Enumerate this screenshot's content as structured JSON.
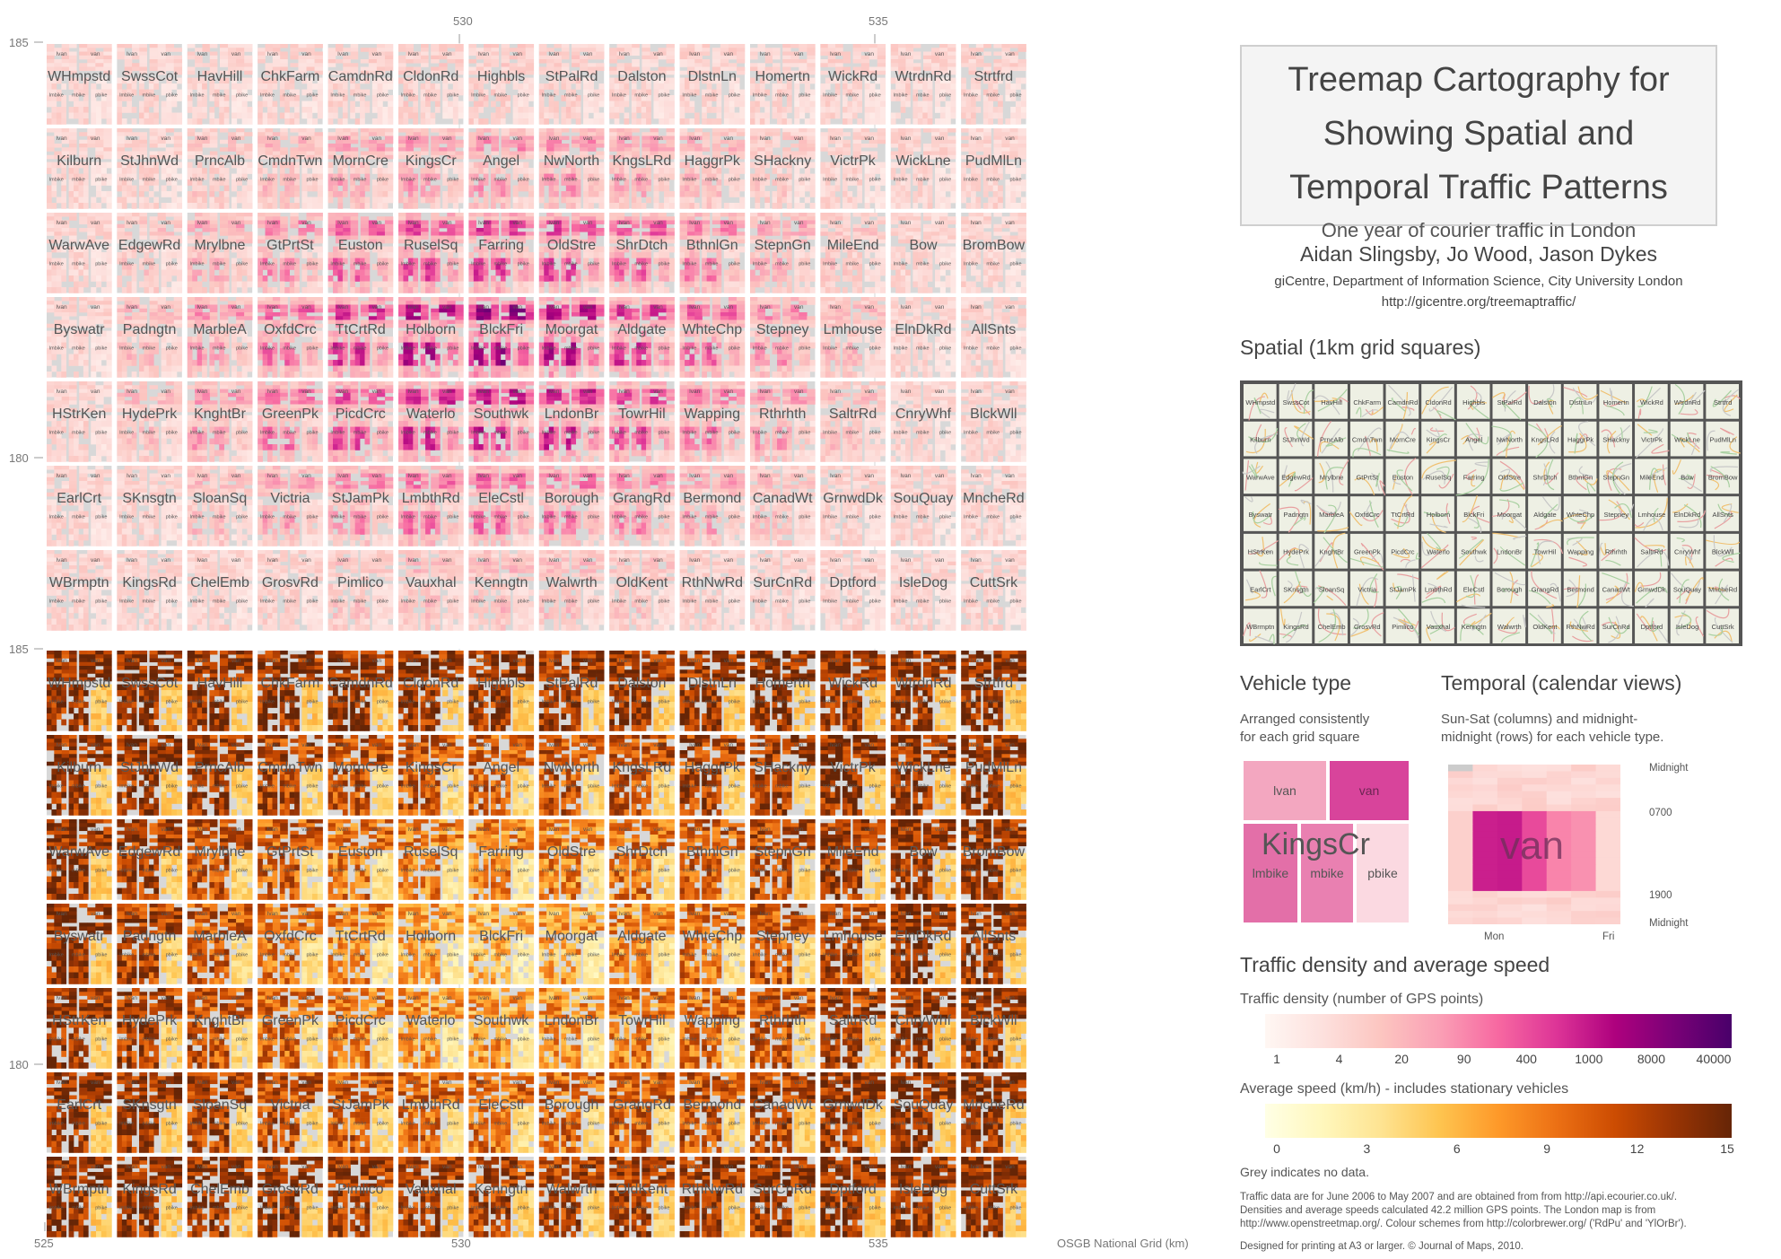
{
  "axes": {
    "top_ticks": [
      "530",
      "535"
    ],
    "bottom_ticks": [
      "525",
      "530",
      "535"
    ],
    "left_ticks_upper": [
      "185",
      "180"
    ],
    "left_ticks_lower": [
      "185",
      "180"
    ],
    "axis_caption": "OSGB National Grid (km)"
  },
  "grid": {
    "columns": 14,
    "rows": [
      [
        "WHmpstd",
        "SwssCot",
        "HavHill",
        "ChkFarm",
        "CamdnRd",
        "CldonRd",
        "Highbls",
        "StPalRd",
        "Dalston",
        "DlstnLn",
        "Homertn",
        "WickRd",
        "WtrdnRd",
        "Strtfrd"
      ],
      [
        "Kilburn",
        "StJhnWd",
        "PrncAlb",
        "CmdnTwn",
        "MornCre",
        "KingsCr",
        "Angel",
        "NwNorth",
        "KngsLRd",
        "HaggrPk",
        "SHackny",
        "VictrPk",
        "WickLne",
        "PudMlLn"
      ],
      [
        "WarwAve",
        "EdgewRd",
        "Mrylbne",
        "GtPrtSt",
        "Euston",
        "RuselSq",
        "Farring",
        "OldStre",
        "ShrDtch",
        "BthnlGn",
        "StepnGn",
        "MileEnd",
        "Bow",
        "BromBow"
      ],
      [
        "Byswatr",
        "Padngtn",
        "MarbleA",
        "OxfdCrc",
        "TtCrtRd",
        "Holborn",
        "BlckFri",
        "Moorgat",
        "Aldgate",
        "WhteChp",
        "Stepney",
        "Lmhouse",
        "ElnDkRd",
        "AllSnts"
      ],
      [
        "HStrKen",
        "HydePrk",
        "KnghtBr",
        "GreenPk",
        "PicdCrc",
        "Waterlo",
        "Southwk",
        "LndonBr",
        "TowrHil",
        "Wapping",
        "Rthrhth",
        "SaltrRd",
        "CnryWhf",
        "BlckWll"
      ],
      [
        "EarlCrt",
        "SKnsgtn",
        "SloanSq",
        "Victria",
        "StJamPk",
        "LmbthRd",
        "EleCstl",
        "Borough",
        "GrangRd",
        "Bermond",
        "CanadWt",
        "GrnwdDk",
        "SouQuay",
        "MncheRd"
      ],
      [
        "WBrmptn",
        "KingsRd",
        "ChelEmb",
        "GrosvRd",
        "Pimlico",
        "Vauxhal",
        "Kenngtn",
        "Walwrth",
        "OldKent",
        "RthNwRd",
        "SurCnRd",
        "Dptford",
        "IsleDog",
        "CuttSrk"
      ]
    ],
    "subcell_labels": [
      "lvan",
      "van",
      "lmbike",
      "mbike",
      "pbike"
    ]
  },
  "title": {
    "line1": "Treemap Cartography for",
    "line2": "Showing Spatial and",
    "line3": "Temporal Traffic Patterns",
    "subtitle": "One year of courier traffic in London"
  },
  "authors": {
    "names": "Aidan Slingsby, Jo Wood, Jason Dykes",
    "affiliation": "giCentre, Department of Information Science, City University London",
    "url": "http://gicentre.org/treemaptraffic/"
  },
  "spatial": {
    "heading": "Spatial (1km grid squares)"
  },
  "vehicle_type": {
    "heading": "Vehicle type",
    "desc_line1": "Arranged consistently",
    "desc_line2": "for each grid square",
    "example_name": "KingsCr",
    "lvan": "lvan",
    "van": "van",
    "lmbike": "lmbike",
    "mbike": "mbike",
    "pbike": "pbike"
  },
  "temporal": {
    "heading": "Temporal (calendar views)",
    "desc_line1": "Sun-Sat (columns) and midnight-",
    "desc_line2": "midnight (rows) for each vehicle type.",
    "big_label": "van",
    "times": [
      "Midnight",
      "0700",
      "1900",
      "Midnight"
    ],
    "days": [
      "Mon",
      "Fri"
    ]
  },
  "legend": {
    "heading": "Traffic density and average speed",
    "density_title": "Traffic density (number of GPS points)",
    "density_ticks": [
      "1",
      "4",
      "20",
      "90",
      "400",
      "1000",
      "8000",
      "40000"
    ],
    "speed_title": "Average speed (km/h) - includes stationary vehicles",
    "speed_ticks": [
      "0",
      "3",
      "6",
      "9",
      "12",
      "15"
    ],
    "grey_note": "Grey indicates no data."
  },
  "footnotes": {
    "line1": "Traffic data are for June 2006 to May 2007 and are obtained from from http://api.ecourier.co.uk/.",
    "line2": "Densities and average speeds calculated 42.2 million GPS points. The London map is from",
    "line3": "http://www.openstreetmap.org/. Colour schemes from http://colorbrewer.org/ ('RdPu' and 'YlOrBr').",
    "line4": "Designed for printing at A3 or larger. © Journal of Maps, 2010."
  },
  "colors": {
    "density_scale": [
      "#fff7f3",
      "#fde0dd",
      "#fcc5c0",
      "#fa9fb5",
      "#f768a1",
      "#dd3497",
      "#ae017e",
      "#7a0177",
      "#49006a"
    ],
    "speed_scale": [
      "#ffffe5",
      "#fff7bc",
      "#fee391",
      "#fec44f",
      "#fe9929",
      "#ec7014",
      "#cc4c02",
      "#993404",
      "#662506"
    ],
    "no_data": "#d8d8d8"
  }
}
